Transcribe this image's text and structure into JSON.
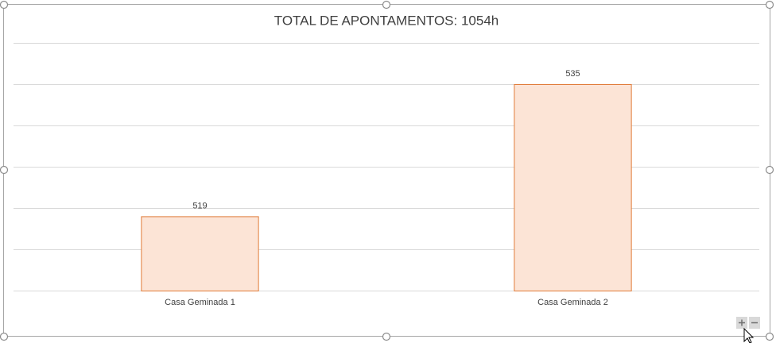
{
  "chart_data": {
    "type": "bar",
    "title": "TOTAL DE APONTAMENTOS: 1054h",
    "categories": [
      "Casa Geminada 1",
      "Casa Geminada 2"
    ],
    "values": [
      519,
      535
    ],
    "color": "#fce4d6",
    "edge_color": "#e07b39",
    "ylim": [
      510,
      540
    ],
    "yticks": [
      510,
      515,
      520,
      525,
      530,
      535,
      540
    ],
    "grid": true
  }
}
